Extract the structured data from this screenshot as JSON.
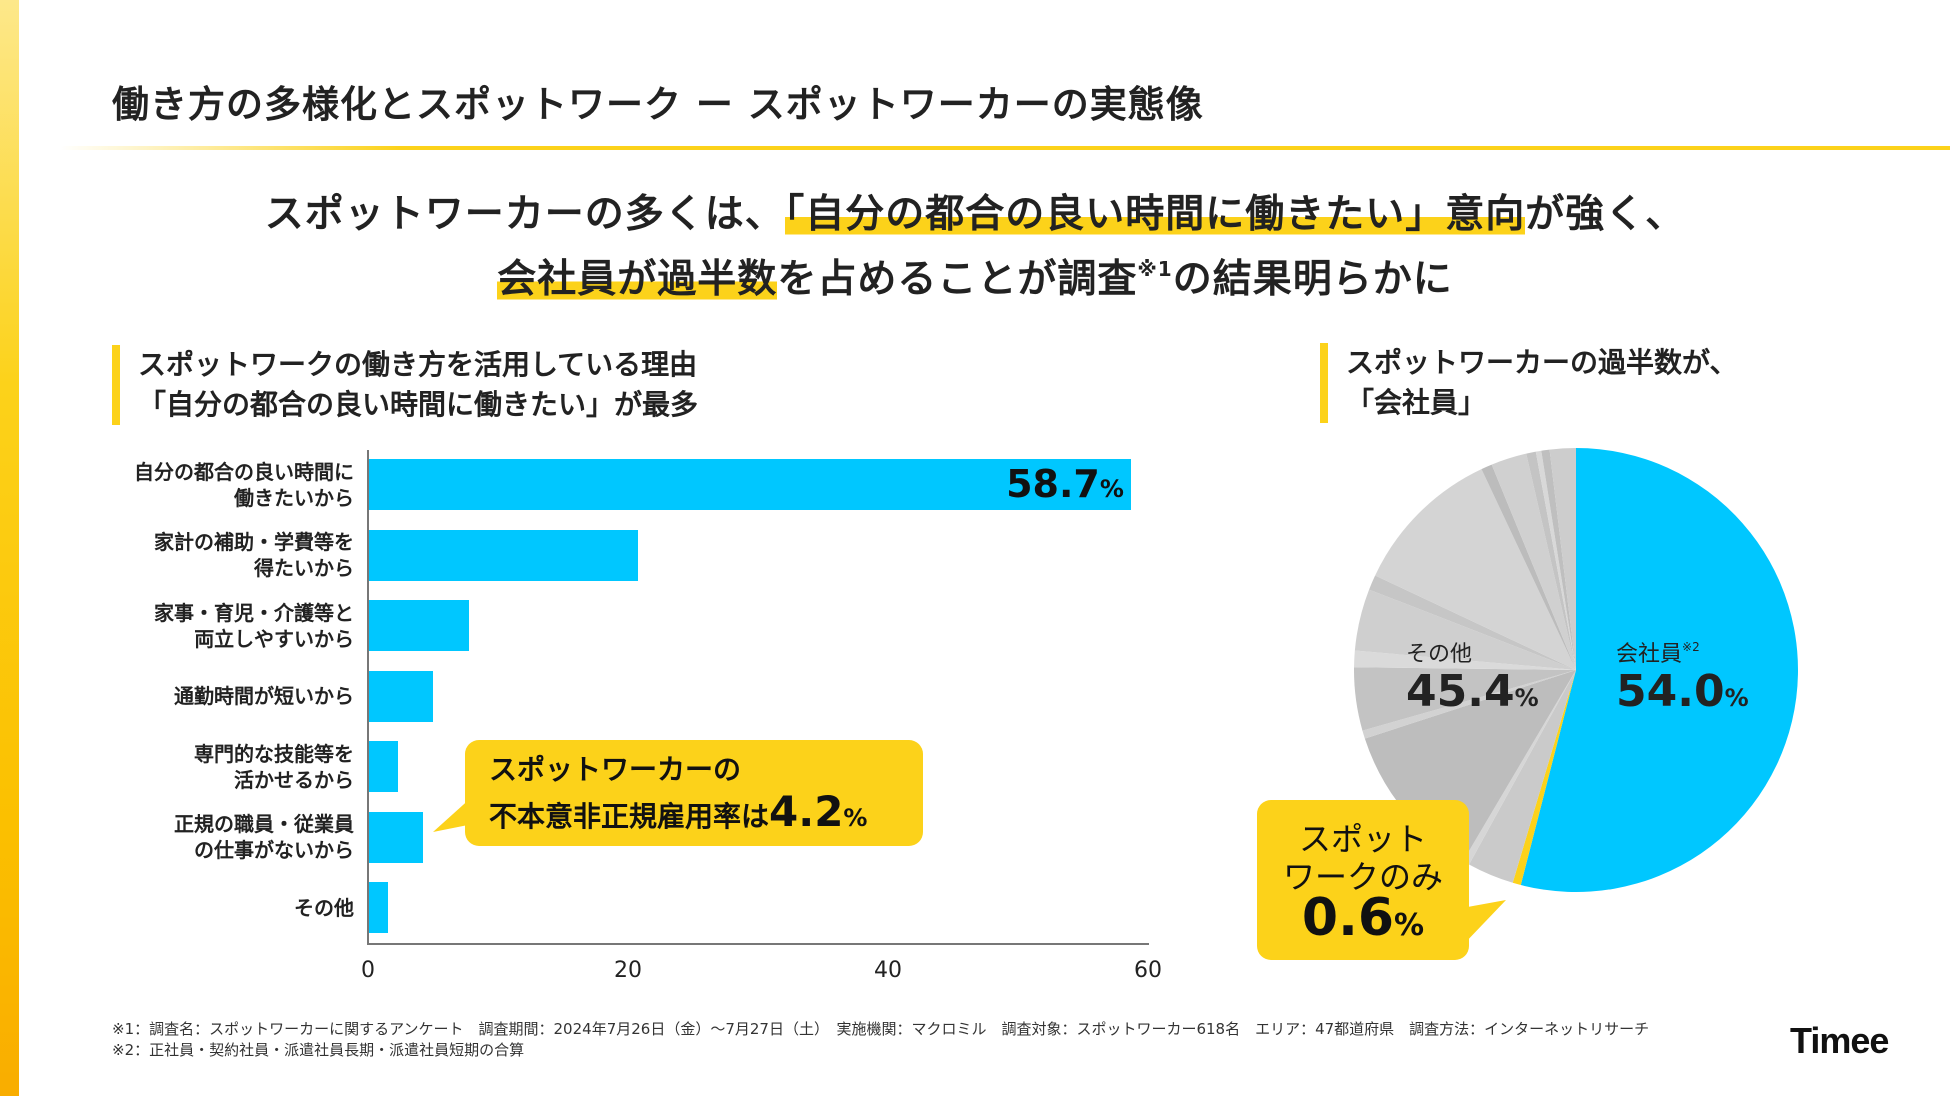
{
  "page": {
    "title": "働き方の多様化とスポットワーク ー スポットワーカーの実態像",
    "headline": {
      "line1_pre": "スポットワーカーの多くは、",
      "line1_highlight": "「自分の都合の良い時間に働きたい」意向",
      "line1_post": "が強く、",
      "line2_highlight": "会社員が過半数",
      "line2_mid": "を占めることが調査",
      "line2_sup": "※1",
      "line2_post": "の結果明らかに"
    },
    "colors": {
      "accent_yellow": "#fcd21a",
      "bar_blue": "#00c7ff",
      "grey": "#c8c8c8",
      "text": "#222222"
    },
    "logo": "Timee"
  },
  "left_section": {
    "heading_line1": "スポットワークの働き方を活用している理由",
    "heading_line2": "「自分の都合の良い時間に働きたい」が最多",
    "callout": {
      "line1": "スポットワーカーの",
      "line2_text": "不本意非正規雇用率は",
      "line2_value": "4.2",
      "line2_unit": "%"
    }
  },
  "right_section": {
    "heading_line1": "スポットワーカーの過半数が、",
    "heading_line2": "「会社員」",
    "callout": {
      "line1": "スポット",
      "line2": "ワークのみ",
      "value": "0.6",
      "unit": "%"
    }
  },
  "chart_data": [
    {
      "type": "bar",
      "orientation": "horizontal",
      "title": "スポットワークの働き方を活用している理由",
      "categories": [
        [
          "自分の都合の良い時間に",
          "働きたいから"
        ],
        [
          "家計の補助・学費等を",
          "得たいから"
        ],
        [
          "家事・育児・介護等と",
          "両立しやすいから"
        ],
        [
          "通勤時間が短いから"
        ],
        [
          "専門的な技能等を",
          "活かせるから"
        ],
        [
          "正規の職員・従業員",
          "の仕事がないから"
        ],
        [
          "その他"
        ]
      ],
      "values": [
        58.7,
        20.8,
        7.8,
        5.0,
        2.3,
        4.2,
        1.5
      ],
      "data_labels": [
        {
          "index": 0,
          "value": "58.7",
          "unit": "%"
        }
      ],
      "xlim": [
        0,
        60
      ],
      "xticks": [
        "0",
        "20",
        "40",
        "60"
      ],
      "xlabel": "",
      "ylabel": "",
      "grid": false
    },
    {
      "type": "pie",
      "title": "スポットワーカーの過半数が、「会社員」",
      "slices": [
        {
          "name": "会社員",
          "note": "※2",
          "value": 54.0,
          "color": "#00c7ff",
          "label": "54.0"
        },
        {
          "name": "スポットワークのみ",
          "value": 0.6,
          "color": "#fcd21a",
          "label": "0.6"
        },
        {
          "name": "その他",
          "value": 45.4,
          "color": "#c8c8c8",
          "label": "45.4",
          "sub_slices": [
            3.4,
            0.5,
            11.5,
            0.6,
            4.6,
            1.2,
            4.5,
            1.1,
            11.0,
            0.8,
            2.6,
            0.7,
            0.4,
            0.6,
            1.9
          ]
        }
      ],
      "start": "top",
      "direction": "clockwise"
    }
  ],
  "footnotes": {
    "f1": "※1：調査名：スポットワーカーに関するアンケート　調査期間：2024年7月26日（金）〜7月27日（土）　実施機関：マクロミル　調査対象：スポットワーカー618名　エリア：47都道府県　調査方法：インターネットリサーチ",
    "f2": "※2：正社員・契約社員・派遣社員長期・派遣社員短期の合算"
  }
}
